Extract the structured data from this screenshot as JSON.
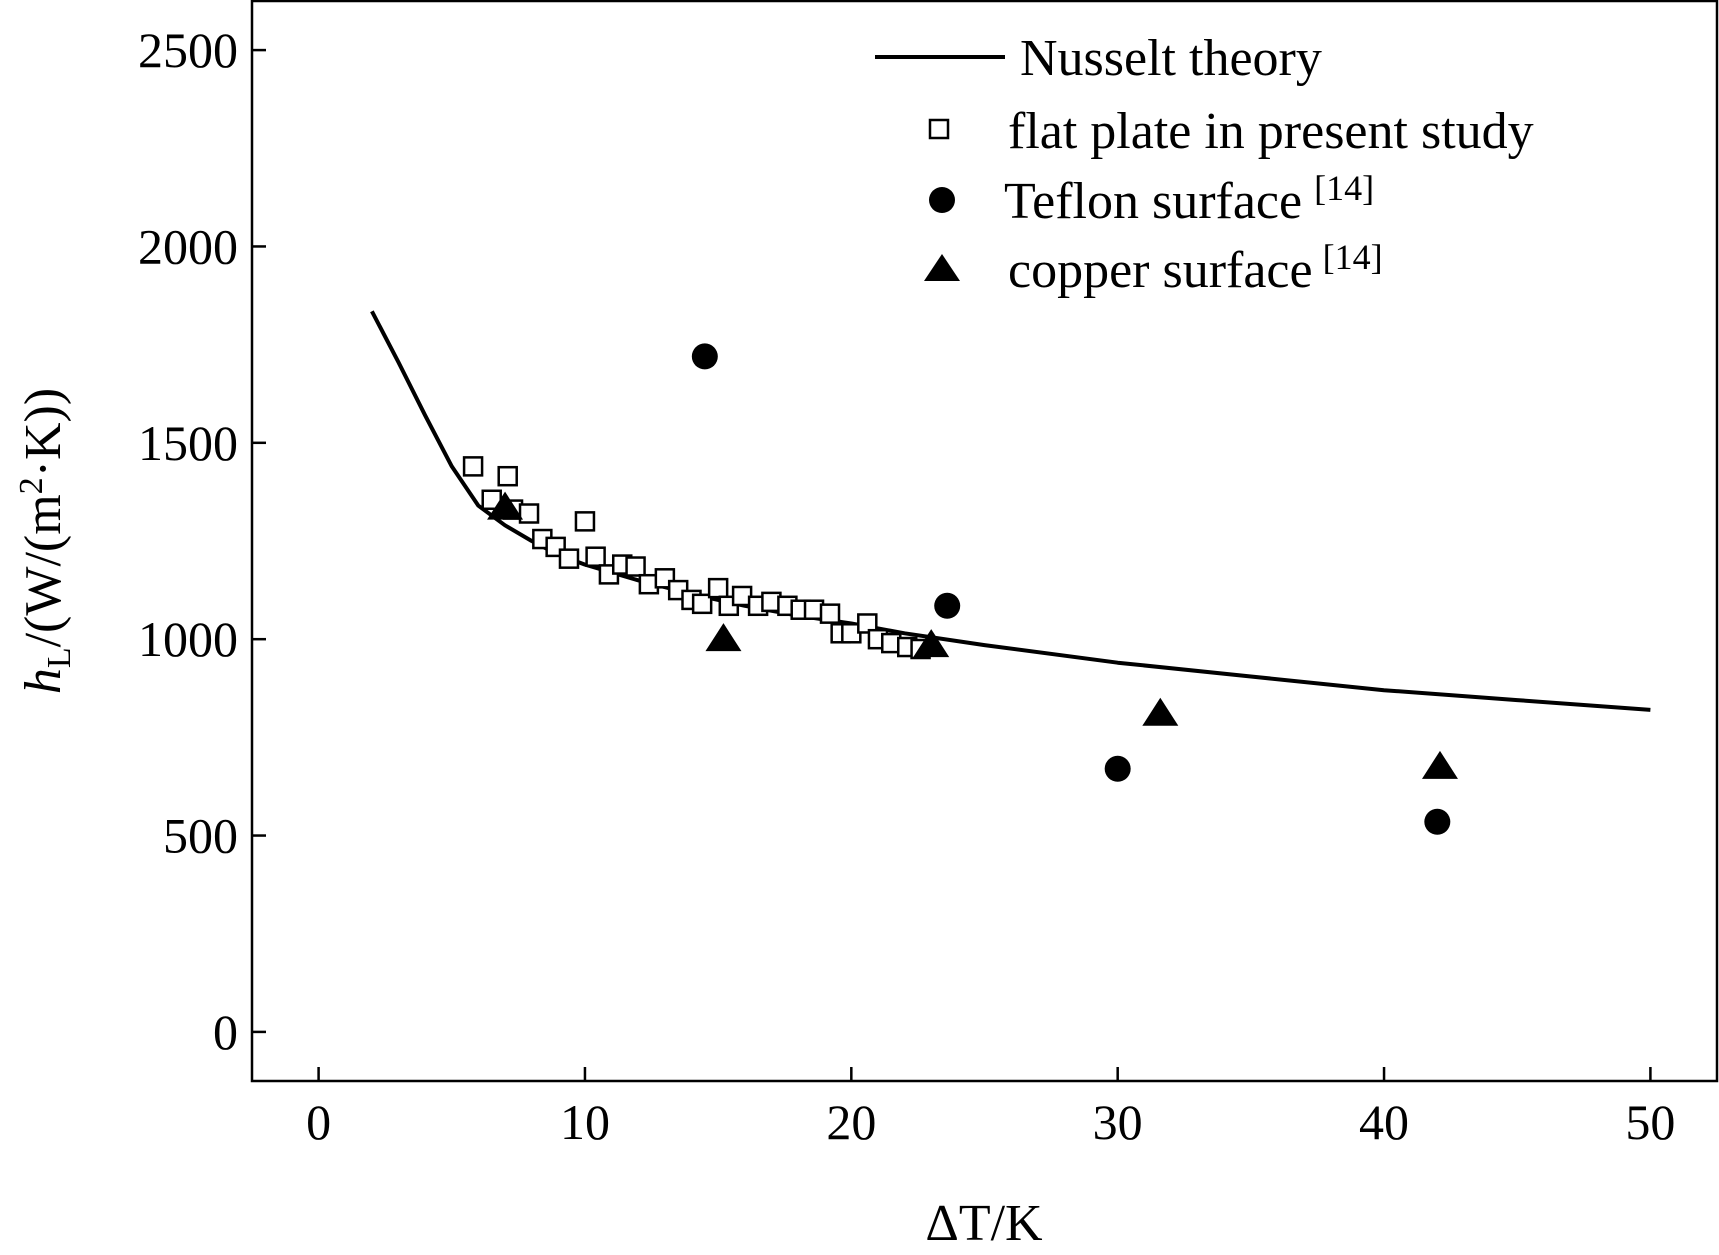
{
  "chart_data": {
    "type": "scatter",
    "title": "",
    "xlabel": "ΔT/K",
    "ylabel": "h_L/(W/(m²·K))",
    "ylabel_parts": {
      "h": "h",
      "sub": "L",
      "unit_a": "/(W/(m",
      "sup": "2",
      "unit_b": "·K))"
    },
    "xlim": [
      -2.5,
      52.5
    ],
    "ylim": [
      -125,
      2625
    ],
    "xticks": [
      0,
      10,
      20,
      30,
      40,
      50
    ],
    "yticks": [
      0,
      500,
      1000,
      1500,
      2000,
      2500
    ],
    "grid": false,
    "legend_position": "top-right",
    "series": [
      {
        "name": "Nusselt theory",
        "kind": "line",
        "color": "#000000",
        "x": [
          2,
          3,
          4,
          5,
          6,
          7,
          8,
          9,
          10,
          12,
          14,
          16,
          18,
          20,
          22,
          25,
          30,
          35,
          40,
          45,
          50
        ],
        "y": [
          1835,
          1705,
          1570,
          1440,
          1340,
          1290,
          1250,
          1215,
          1190,
          1150,
          1115,
          1085,
          1060,
          1040,
          1015,
          985,
          940,
          905,
          870,
          845,
          820
        ]
      },
      {
        "name": "flat plate in present study",
        "kind": "scatter",
        "marker": "square-open",
        "x": [
          5.8,
          6.5,
          7.1,
          7.3,
          7.9,
          8.4,
          8.9,
          9.4,
          10.0,
          10.4,
          10.9,
          11.4,
          11.9,
          12.4,
          13.0,
          13.5,
          14.0,
          14.4,
          15.0,
          15.4,
          15.9,
          16.5,
          17.0,
          17.6,
          18.1,
          18.6,
          19.2,
          19.6,
          20.0,
          20.6,
          21.0,
          21.5,
          22.1,
          22.6
        ],
        "y": [
          1440,
          1355,
          1415,
          1330,
          1320,
          1255,
          1235,
          1205,
          1300,
          1210,
          1165,
          1190,
          1185,
          1140,
          1155,
          1125,
          1100,
          1090,
          1130,
          1085,
          1110,
          1085,
          1095,
          1085,
          1075,
          1075,
          1065,
          1015,
          1015,
          1040,
          1000,
          990,
          980,
          975
        ]
      },
      {
        "name": "Teflon surface",
        "ref": "[14]",
        "kind": "scatter",
        "marker": "circle-filled",
        "x": [
          14.5,
          23.6,
          30.0,
          42.0
        ],
        "y": [
          1720,
          1085,
          670,
          535
        ]
      },
      {
        "name": "copper surface",
        "ref": "[14]",
        "kind": "scatter",
        "marker": "triangle-filled",
        "x": [
          7.0,
          15.2,
          23.0,
          31.6,
          42.1
        ],
        "y": [
          1335,
          1000,
          985,
          810,
          675
        ]
      }
    ]
  }
}
